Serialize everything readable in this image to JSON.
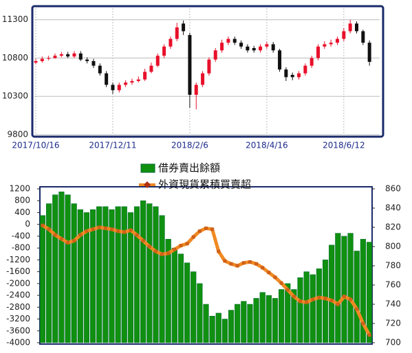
{
  "chart_data": [
    {
      "type": "candlestick",
      "categories": [
        "2017/10/16",
        null,
        null,
        null,
        null,
        null,
        null,
        null,
        null,
        null,
        null,
        null,
        "2017/12/11",
        null,
        null,
        null,
        null,
        null,
        null,
        null,
        null,
        null,
        null,
        null,
        "2018/2/6",
        null,
        null,
        null,
        null,
        null,
        null,
        null,
        null,
        null,
        null,
        null,
        "2018/4/16",
        null,
        null,
        null,
        null,
        null,
        null,
        null,
        null,
        null,
        null,
        null,
        "2018/6/12",
        null,
        null,
        null,
        null
      ],
      "open": [
        10740,
        10760,
        10790,
        10800,
        10830,
        10850,
        10820,
        10860,
        10780,
        10760,
        10700,
        10600,
        10450,
        10380,
        10450,
        10480,
        10500,
        10520,
        10620,
        10700,
        10830,
        10950,
        11050,
        11250,
        11100,
        10320,
        10450,
        10600,
        10780,
        10900,
        11000,
        11050,
        11000,
        10950,
        10930,
        10900,
        10950,
        10980,
        10900,
        10650,
        10580,
        10550,
        10600,
        10700,
        10800,
        10950,
        10980,
        11000,
        11050,
        11150,
        11250,
        11150,
        11000
      ],
      "high": [
        10790,
        10820,
        10830,
        10860,
        10880,
        10880,
        10890,
        10890,
        10810,
        10790,
        10730,
        10630,
        10480,
        10480,
        10510,
        10530,
        10560,
        10660,
        10740,
        10860,
        10980,
        11080,
        11260,
        11290,
        11130,
        10480,
        10630,
        10810,
        10930,
        11040,
        11080,
        11080,
        11030,
        10980,
        10960,
        10980,
        11010,
        11010,
        10920,
        10680,
        10610,
        10630,
        10730,
        10830,
        10980,
        11020,
        11040,
        11080,
        11190,
        11300,
        11280,
        11170,
        11030
      ],
      "low": [
        10720,
        10740,
        10770,
        10790,
        10810,
        10800,
        10800,
        10760,
        10730,
        10670,
        10570,
        10420,
        10330,
        10350,
        10420,
        10450,
        10480,
        10500,
        10600,
        10680,
        10800,
        10920,
        11020,
        11100,
        10150,
        10130,
        10420,
        10570,
        10750,
        10870,
        10970,
        10970,
        10920,
        10870,
        10870,
        10870,
        10920,
        10870,
        10620,
        10500,
        10510,
        10520,
        10570,
        10670,
        10770,
        10920,
        10950,
        10970,
        11020,
        11120,
        11120,
        10970,
        10700
      ],
      "close": [
        10760,
        10790,
        10800,
        10830,
        10850,
        10820,
        10860,
        10780,
        10760,
        10700,
        10600,
        10450,
        10380,
        10450,
        10480,
        10500,
        10520,
        10620,
        10700,
        10830,
        10950,
        11050,
        11200,
        11150,
        10320,
        10450,
        10600,
        10780,
        10900,
        11000,
        11050,
        11000,
        10950,
        10900,
        10900,
        10950,
        10980,
        10900,
        10650,
        10550,
        10550,
        10600,
        10700,
        10800,
        10950,
        10980,
        11000,
        11050,
        11150,
        11250,
        11150,
        11000,
        10750
      ],
      "up_color": "#e8102a",
      "down_color": "#111111",
      "ylim": [
        9800,
        11450
      ],
      "yticks": [
        9800,
        10300,
        10800,
        11300
      ],
      "grid": true
    },
    {
      "type": "bar_line",
      "series": [
        {
          "name": "借券賣出餘額",
          "color": "#109010",
          "type": "bar",
          "values": [
            300,
            700,
            1000,
            1100,
            1000,
            700,
            500,
            400,
            500,
            600,
            600,
            500,
            600,
            600,
            400,
            600,
            800,
            700,
            600,
            300,
            -500,
            -800,
            -1000,
            -1300,
            -1600,
            -2000,
            -2700,
            -3100,
            -3000,
            -3200,
            -2900,
            -2700,
            -2600,
            -2700,
            -2500,
            -2300,
            -2400,
            -2500,
            -2200,
            -2000,
            -2200,
            -1800,
            -1600,
            -1700,
            -1500,
            -1200,
            -700,
            -300,
            -400,
            -300,
            -900,
            -500,
            -600
          ]
        },
        {
          "name": "外資現貨累積買賣超",
          "color": "#f08a24",
          "type": "line",
          "axis": "y2",
          "values": [
            822,
            818,
            812,
            808,
            804,
            806,
            812,
            816,
            818,
            820,
            819,
            818,
            816,
            815,
            817,
            812,
            806,
            800,
            795,
            792,
            793,
            797,
            801,
            803,
            810,
            816,
            819,
            818,
            795,
            785,
            782,
            780,
            783,
            784,
            782,
            778,
            773,
            768,
            762,
            755,
            748,
            743,
            742,
            745,
            747,
            746,
            744,
            740,
            748,
            745,
            735,
            720,
            708
          ]
        }
      ],
      "ylim": [
        -4000,
        1200
      ],
      "yticks": [
        -4000,
        -3600,
        -3200,
        -2800,
        -2400,
        -2000,
        -1600,
        -1200,
        -800,
        -400,
        0,
        400,
        800,
        1200
      ],
      "y2lim": [
        700,
        860
      ],
      "y2ticks": [
        700,
        720,
        740,
        760,
        780,
        800,
        820,
        840,
        860
      ]
    }
  ]
}
